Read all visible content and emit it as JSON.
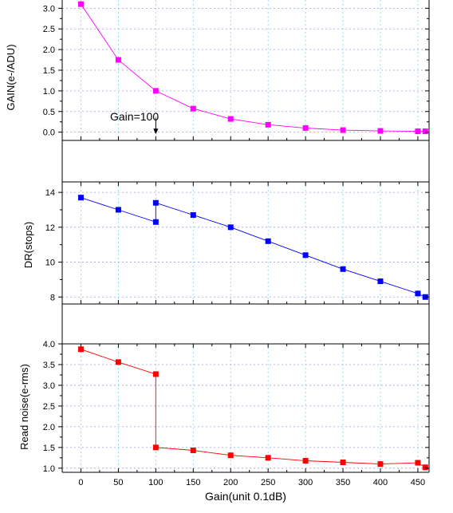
{
  "chart_data": [
    {
      "type": "line",
      "ylabel": "GAIN(e-/ADU)",
      "xlim": [
        -25,
        465
      ],
      "ylim": [
        -0.2,
        3.2
      ],
      "yticks": [
        "0.0",
        "0.5",
        "1.0",
        "1.5",
        "2.0",
        "2.5",
        "3.0"
      ],
      "series": [
        {
          "color": "#ff00ff",
          "marker": "square",
          "x": [
            0,
            50,
            100,
            150,
            200,
            250,
            300,
            350,
            400,
            450,
            460
          ],
          "y": [
            3.1,
            1.75,
            1.0,
            0.57,
            0.32,
            0.18,
            0.1,
            0.05,
            0.03,
            0.02,
            0.02
          ]
        }
      ],
      "annotation": {
        "text": "Gain=100",
        "x": 100,
        "y_from": 0.35,
        "y_to": -0.05,
        "arrow": "down"
      },
      "grid": true
    },
    {
      "type": "line",
      "ylabel": "DR(stops)",
      "xlim": [
        -25,
        465
      ],
      "ylim": [
        7.6,
        14.6
      ],
      "yticks": [
        "8",
        "10",
        "12",
        "14"
      ],
      "series": [
        {
          "color": "#0000ff",
          "marker": "square",
          "x": [
            0,
            50,
            100,
            100,
            150,
            200,
            250,
            300,
            350,
            400,
            450,
            460
          ],
          "y": [
            13.7,
            13.0,
            12.3,
            13.4,
            12.7,
            12.0,
            11.2,
            10.4,
            9.6,
            8.9,
            8.2,
            8.0
          ]
        }
      ],
      "grid": true
    },
    {
      "type": "line",
      "ylabel": "Read noise(e-rms)",
      "xlabel": "Gain(unit 0.1dB)",
      "xlim": [
        -25,
        465
      ],
      "ylim": [
        0.9,
        4.0
      ],
      "yticks": [
        "1.0",
        "1.5",
        "2.0",
        "2.5",
        "3.0",
        "3.5",
        "4.0"
      ],
      "xticks": [
        "0",
        "50",
        "100",
        "150",
        "200",
        "250",
        "300",
        "350",
        "400",
        "450"
      ],
      "series": [
        {
          "color": "#ff0000",
          "marker": "square",
          "x": [
            0,
            50,
            100,
            100,
            150,
            200,
            250,
            300,
            350,
            400,
            450,
            460
          ],
          "y": [
            3.87,
            3.56,
            3.27,
            1.5,
            1.43,
            1.31,
            1.25,
            1.18,
            1.14,
            1.1,
            1.13,
            1.02
          ]
        }
      ],
      "grid": true
    }
  ]
}
